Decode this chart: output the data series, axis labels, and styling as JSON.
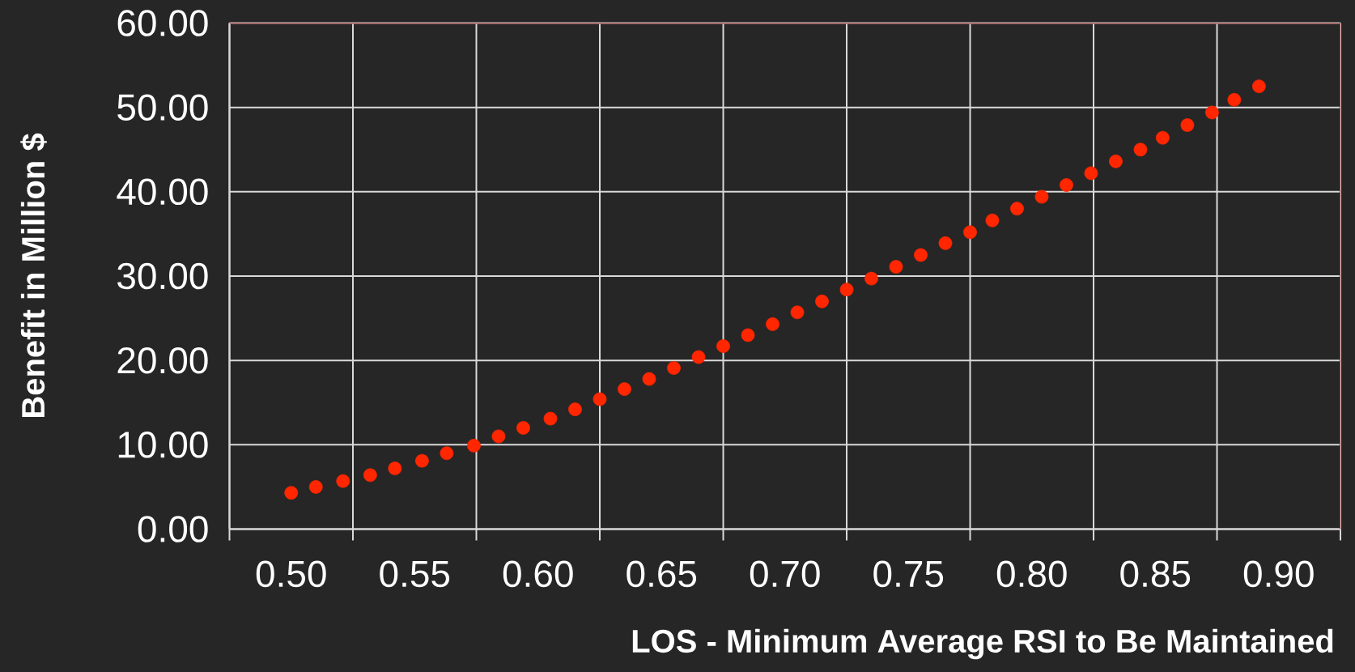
{
  "chart_data": {
    "type": "scatter",
    "xlabel": "LOS - Minimum Average RSI to Be Maintained",
    "ylabel": "Benefit in Million $",
    "x": [
      0.5,
      0.51,
      0.521,
      0.532,
      0.542,
      0.553,
      0.563,
      0.574,
      0.584,
      0.594,
      0.605,
      0.615,
      0.625,
      0.635,
      0.645,
      0.655,
      0.665,
      0.675,
      0.685,
      0.695,
      0.705,
      0.715,
      0.725,
      0.735,
      0.745,
      0.755,
      0.765,
      0.775,
      0.784,
      0.794,
      0.804,
      0.814,
      0.824,
      0.834,
      0.844,
      0.853,
      0.863,
      0.873,
      0.882,
      0.892
    ],
    "values": [
      4.3,
      5.0,
      5.7,
      6.4,
      7.2,
      8.1,
      9.0,
      9.9,
      11.0,
      12.0,
      13.1,
      14.2,
      15.4,
      16.6,
      17.8,
      19.1,
      20.4,
      21.7,
      23.0,
      24.3,
      25.7,
      27.0,
      28.4,
      29.7,
      31.1,
      32.5,
      33.9,
      35.2,
      36.6,
      38.0,
      39.4,
      40.8,
      42.2,
      43.6,
      45.0,
      46.4,
      47.9,
      49.4,
      50.9,
      52.5
    ],
    "color": "#ff2600",
    "grid": true,
    "xlim": [
      0.475,
      0.925
    ],
    "ylim": [
      0,
      60
    ],
    "xticks": [
      {
        "value": 0.5,
        "label": "0.50"
      },
      {
        "value": 0.55,
        "label": "0.55"
      },
      {
        "value": 0.6,
        "label": "0.60"
      },
      {
        "value": 0.65,
        "label": "0.65"
      },
      {
        "value": 0.7,
        "label": "0.70"
      },
      {
        "value": 0.75,
        "label": "0.75"
      },
      {
        "value": 0.8,
        "label": "0.80"
      },
      {
        "value": 0.85,
        "label": "0.85"
      },
      {
        "value": 0.9,
        "label": "0.90"
      },
      {
        "value": 0.475,
        "label": null
      },
      {
        "value": 0.525,
        "label": null
      },
      {
        "value": 0.575,
        "label": null
      },
      {
        "value": 0.625,
        "label": null
      },
      {
        "value": 0.675,
        "label": null
      },
      {
        "value": 0.725,
        "label": null
      },
      {
        "value": 0.775,
        "label": null
      },
      {
        "value": 0.825,
        "label": null
      },
      {
        "value": 0.875,
        "label": null
      },
      {
        "value": 0.925,
        "label": null
      }
    ],
    "yticks": [
      {
        "value": 0,
        "label": "0.00"
      },
      {
        "value": 10,
        "label": "10.00"
      },
      {
        "value": 20,
        "label": "20.00"
      },
      {
        "value": 30,
        "label": "30.00"
      },
      {
        "value": 40,
        "label": "40.00"
      },
      {
        "value": 50,
        "label": "50.00"
      },
      {
        "value": 60,
        "label": "60.00"
      }
    ]
  }
}
